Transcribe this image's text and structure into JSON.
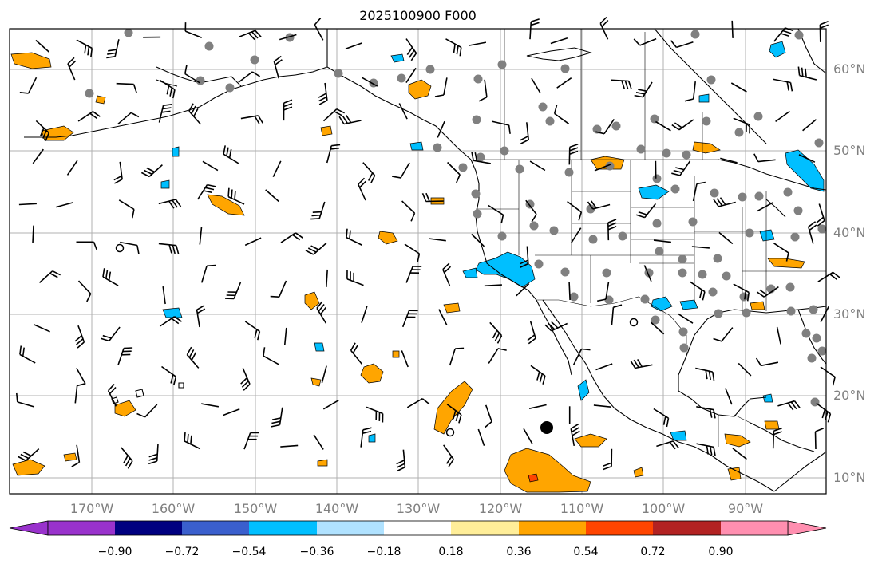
{
  "title": "2025100900 F000",
  "lat_labels": [
    "60°N",
    "50°N",
    "40°N",
    "30°N",
    "20°N",
    "10°N"
  ],
  "lon_labels": [
    "170°W",
    "160°W",
    "150°W",
    "140°W",
    "130°W",
    "120°W",
    "110°W",
    "100°W",
    "90°W"
  ],
  "colorbar": {
    "ticks": [
      "−0.90",
      "−0.72",
      "−0.54",
      "−0.36",
      "−0.18",
      "0.18",
      "0.36",
      "0.54",
      "0.72",
      "0.90"
    ],
    "colors": [
      "#9932cc",
      "#000080",
      "#3a5fcd",
      "#00bfff",
      "#b0e2ff",
      "#ffffff",
      "#ffee99",
      "#ffa500",
      "#ff4500",
      "#b22222",
      "#ff8fb0"
    ]
  },
  "colors": {
    "land_outline": "#000000",
    "gridline": "#b0b0b0",
    "station_dot": "#808080",
    "positive_shading": "#ffa500",
    "negative_shading": "#00bfff"
  }
}
